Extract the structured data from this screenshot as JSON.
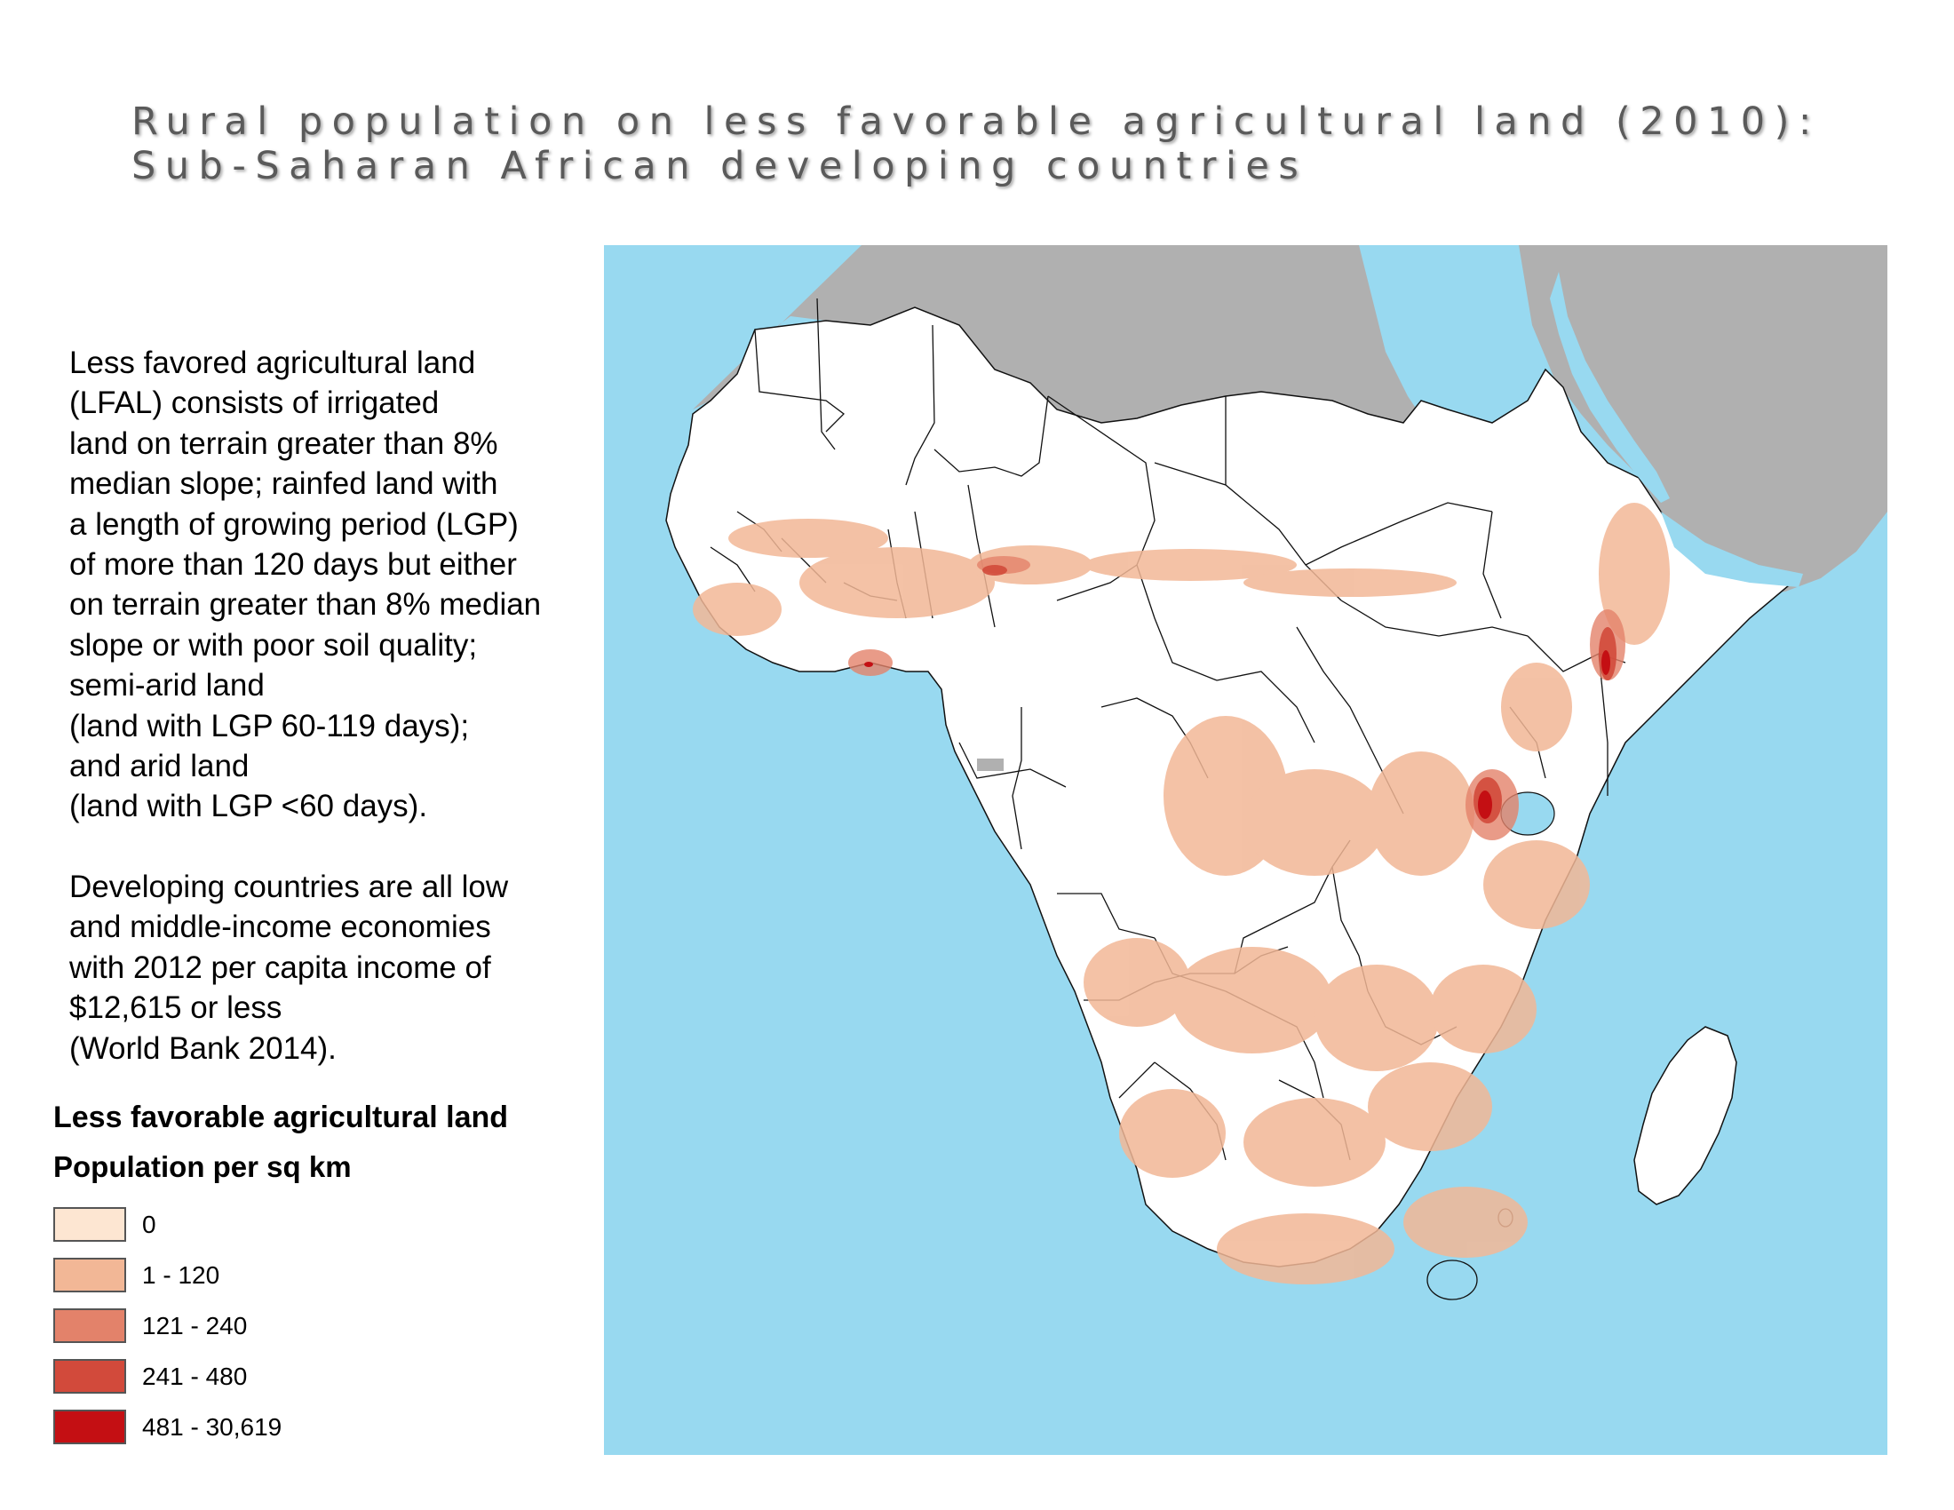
{
  "title": {
    "line1": "Rural population on less favorable agricultural land (2010):",
    "line2": "Sub-Saharan African developing countries"
  },
  "description": {
    "paragraph1": [
      "Less favored agricultural land",
      "(LFAL) consists of irrigated",
      "land on terrain greater than 8%",
      "median slope; rainfed land with",
      "a length of growing period (LGP)",
      "of more than 120 days but either",
      "on terrain greater than 8% median",
      "slope or with poor soil quality;",
      "semi-arid land",
      "(land with LGP 60-119 days);",
      "and arid land",
      "(land with LGP <60 days)."
    ],
    "paragraph2": [
      "Developing countries are all low",
      "and middle-income economies",
      "with 2012 per capita income of",
      "$12,615 or less",
      "(World Bank 2014)."
    ]
  },
  "legend": {
    "title": "Less favorable agricultural land",
    "subtitle": "Population per sq km",
    "classes": [
      {
        "label": "0",
        "color": "#fde6d2"
      },
      {
        "label": "1 - 120",
        "color": "#f2b796"
      },
      {
        "label": "121 - 240",
        "color": "#e3826a"
      },
      {
        "label": "241 - 480",
        "color": "#d24a3b"
      },
      {
        "label": "481 - 30,619",
        "color": "#c40f13"
      }
    ]
  },
  "map": {
    "ocean_color": "#98d9f0",
    "land_color": "#ffffff",
    "excluded_color": "#b0b0b0",
    "border_color": "#111111"
  }
}
